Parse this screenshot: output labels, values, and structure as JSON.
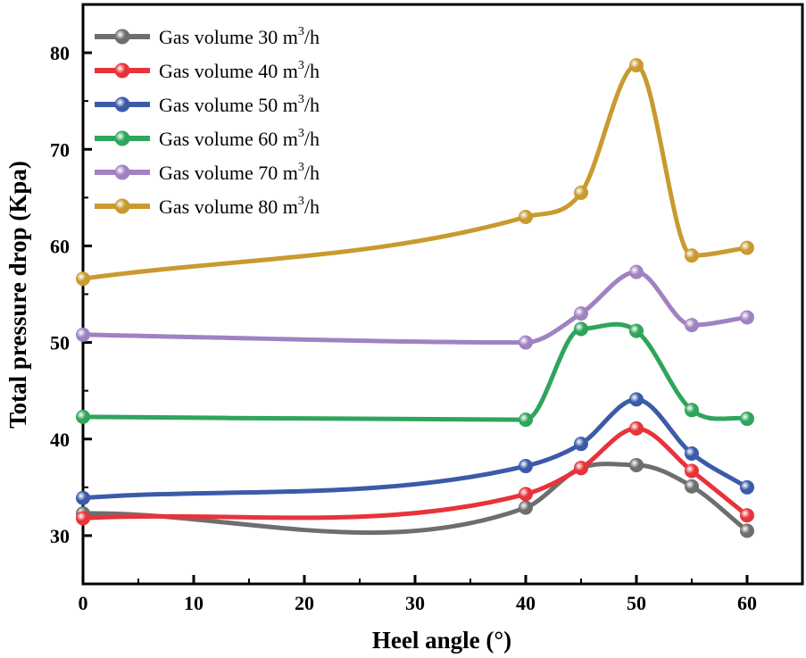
{
  "chart_data": {
    "type": "line",
    "title": "",
    "xlabel": "Heel angle  (°)",
    "ylabel": "Total pressure drop (Kpa)",
    "x_tick_labels": [
      "0",
      "10",
      "20",
      "30",
      "40",
      "50",
      "60"
    ],
    "y_ticks": [
      30,
      40,
      50,
      60,
      70,
      80
    ],
    "x_categories": [
      0,
      40,
      45,
      50,
      55,
      60
    ],
    "ylim": [
      25,
      85
    ],
    "legend_position": "top-left",
    "legend_unit": "m",
    "legend_unit_sup": "3",
    "legend_unit_tail": "/h",
    "series": [
      {
        "name": "Gas volume 30",
        "color": "#6e6e6e",
        "values": [
          32.3,
          32.9,
          37.0,
          37.3,
          35.1,
          30.5
        ]
      },
      {
        "name": "Gas volume 40",
        "color": "#e8333a",
        "values": [
          31.8,
          34.3,
          37.0,
          41.1,
          36.7,
          32.1
        ]
      },
      {
        "name": "Gas volume 50",
        "color": "#3b5ba9",
        "values": [
          33.9,
          37.2,
          39.5,
          44.1,
          38.5,
          35.0
        ]
      },
      {
        "name": "Gas volume 60",
        "color": "#2fa55b",
        "values": [
          42.3,
          42.0,
          51.4,
          51.2,
          43.0,
          42.1
        ]
      },
      {
        "name": "Gas volume 70",
        "color": "#a082c2",
        "values": [
          50.8,
          50.0,
          53.0,
          57.3,
          51.8,
          52.6
        ]
      },
      {
        "name": "Gas volume 80",
        "color": "#c99a2e",
        "values": [
          56.6,
          63.0,
          65.5,
          78.7,
          59.0,
          59.8
        ]
      }
    ]
  }
}
